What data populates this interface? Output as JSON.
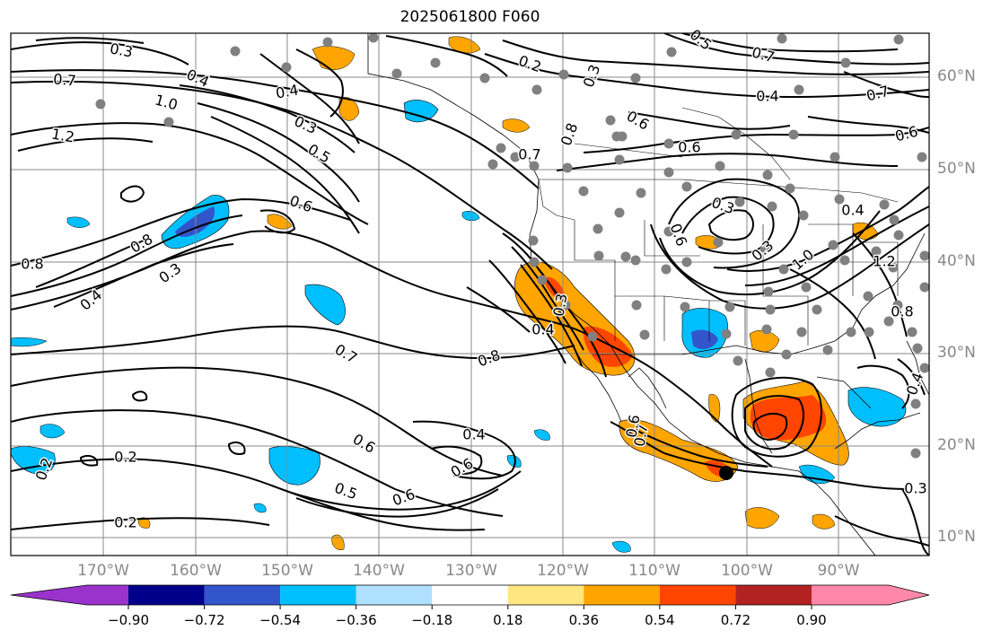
{
  "title": "2025061800 F060",
  "lat_labels": [
    "60°N",
    "50°N",
    "40°N",
    "30°N",
    "20°N",
    "10°N"
  ],
  "lon_labels": [
    "170°W",
    "160°W",
    "150°W",
    "140°W",
    "130°W",
    "120°W",
    "110°W",
    "100°W",
    "90°W"
  ],
  "colorbar": {
    "levels": [
      "−0.90",
      "−0.72",
      "−0.54",
      "−0.36",
      "−0.18",
      "0.18",
      "0.36",
      "0.54",
      "0.72",
      "0.90"
    ],
    "colors": [
      "#9933cc",
      "#00008b",
      "#3355cc",
      "#00bfff",
      "#b0e0ff",
      "#ffffff",
      "#ffe680",
      "#ffa500",
      "#ff4500",
      "#b22222",
      "#ff88aa"
    ]
  },
  "contour_labels": [
    "0.3",
    "0.7",
    "1.0",
    "1.2",
    "0.4",
    "0.4",
    "0.3",
    "0.5",
    "0.6",
    "0.8",
    "0.8",
    "0.3",
    "0.4",
    "0.5",
    "0.2",
    "0.3",
    "0.7",
    "0.6",
    "0.8",
    "0.7",
    "0.6",
    "0.4",
    "0.7",
    "0.6",
    "0.4",
    "0.3",
    "0.6",
    "0.3",
    "1.0",
    "1.2",
    "0.8",
    "0.3",
    "0.4",
    "0.8",
    "0.7",
    "0.6",
    "0.4",
    "0.6",
    "0.2",
    "0.5",
    "0.6",
    "0.7",
    "0.2",
    "0.2",
    "0.6",
    "0.4",
    "0.3"
  ]
}
